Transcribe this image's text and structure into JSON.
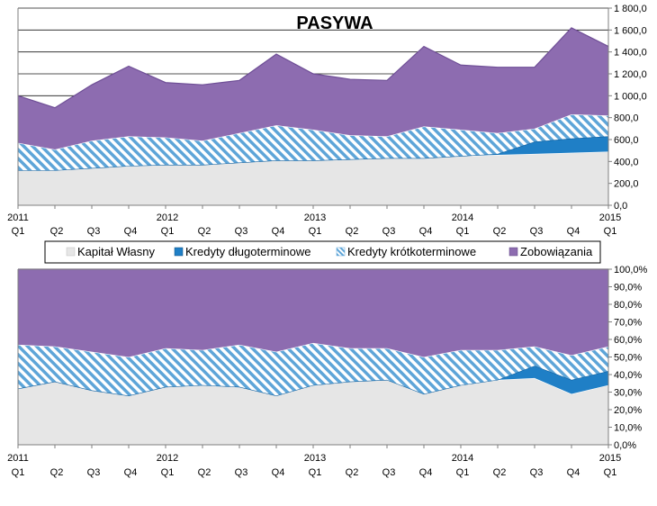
{
  "colors": {
    "kapital": "#e6e6e6",
    "kredyty_dlugo": "#1f7fc6",
    "kredyty_krotko": "#5ea5d8",
    "zobowiazania": "#8d6cb0",
    "axis": "#7f7f7f",
    "grid": "#000000"
  },
  "legend": {
    "items": [
      {
        "label": "Kapitał Własny",
        "icon": "light-gray-square-icon"
      },
      {
        "label": "Kredyty długoterminowe",
        "icon": "blue-square-icon"
      },
      {
        "label": "Kredyty krótkoterminowe",
        "icon": "hatched-square-icon"
      },
      {
        "label": "Zobowiązania",
        "icon": "purple-square-icon"
      }
    ]
  },
  "x_labels": {
    "quarters": [
      "Q1",
      "Q2",
      "Q3",
      "Q4",
      "Q1",
      "Q2",
      "Q3",
      "Q4",
      "Q1",
      "Q2",
      "Q3",
      "Q4",
      "Q1",
      "Q2",
      "Q3",
      "Q4",
      "Q1"
    ],
    "years": [
      {
        "index": 0,
        "label": "2011"
      },
      {
        "index": 4,
        "label": "2012"
      },
      {
        "index": 8,
        "label": "2013"
      },
      {
        "index": 12,
        "label": "2014"
      },
      {
        "index": 16,
        "label": "2015"
      }
    ]
  },
  "chart_data": [
    {
      "type": "area",
      "stacked": true,
      "title": "PASYWA",
      "x": [
        "2011 Q1",
        "2011 Q2",
        "2011 Q3",
        "2011 Q4",
        "2012 Q1",
        "2012 Q2",
        "2012 Q3",
        "2012 Q4",
        "2013 Q1",
        "2013 Q2",
        "2013 Q3",
        "2013 Q4",
        "2014 Q1",
        "2014 Q2",
        "2014 Q3",
        "2014 Q4",
        "2015 Q1"
      ],
      "ylim": [
        0,
        1800
      ],
      "yticks": [
        "0,0",
        "200,0",
        "400,0",
        "600,0",
        "800,0",
        "1 000,0",
        "1 200,0",
        "1 400,0",
        "1 600,0",
        "1 800,0"
      ],
      "ytick_values": [
        0,
        200,
        400,
        600,
        800,
        1000,
        1200,
        1400,
        1600,
        1800
      ],
      "y_axis": "right",
      "grid": true,
      "series": [
        {
          "name": "Kapitał Własny",
          "values": [
            320,
            320,
            340,
            360,
            370,
            370,
            390,
            410,
            410,
            420,
            430,
            430,
            450,
            460,
            470,
            480,
            490
          ]
        },
        {
          "name": "Kredyty długoterminowe",
          "values": [
            0,
            0,
            0,
            0,
            0,
            0,
            0,
            0,
            0,
            0,
            0,
            0,
            0,
            10,
            110,
            130,
            140
          ]
        },
        {
          "name": "Kredyty krótkoterminowe",
          "values": [
            250,
            190,
            250,
            270,
            250,
            220,
            270,
            320,
            280,
            220,
            200,
            290,
            240,
            190,
            120,
            220,
            190
          ]
        },
        {
          "name": "Zobowiązania",
          "values": [
            430,
            380,
            510,
            640,
            500,
            510,
            480,
            650,
            510,
            510,
            510,
            730,
            590,
            600,
            560,
            790,
            630
          ]
        }
      ]
    },
    {
      "type": "area",
      "stacked": true,
      "percent": true,
      "x": [
        "2011 Q1",
        "2011 Q2",
        "2011 Q3",
        "2011 Q4",
        "2012 Q1",
        "2012 Q2",
        "2012 Q3",
        "2012 Q4",
        "2013 Q1",
        "2013 Q2",
        "2013 Q3",
        "2013 Q4",
        "2014 Q1",
        "2014 Q2",
        "2014 Q3",
        "2014 Q4",
        "2015 Q1"
      ],
      "ylim": [
        0,
        100
      ],
      "yticks": [
        "0,0%",
        "10,0%",
        "20,0%",
        "30,0%",
        "40,0%",
        "50,0%",
        "60,0%",
        "70,0%",
        "80,0%",
        "90,0%",
        "100,0%"
      ],
      "ytick_values": [
        0,
        10,
        20,
        30,
        40,
        50,
        60,
        70,
        80,
        90,
        100
      ],
      "y_axis": "right",
      "grid": false,
      "series": [
        {
          "name": "Kapitał Własny",
          "values": [
            32,
            36,
            31,
            28,
            33,
            34,
            33,
            28,
            34,
            36,
            37,
            29,
            34,
            37,
            38,
            29,
            34
          ]
        },
        {
          "name": "Kredyty długoterminowe",
          "values": [
            0,
            0,
            0,
            0,
            0,
            0,
            0,
            0,
            0,
            0,
            0,
            0,
            0,
            0,
            7,
            8,
            8
          ]
        },
        {
          "name": "Kredyty krótkoterminowe",
          "values": [
            25,
            20,
            22,
            22,
            22,
            20,
            24,
            25,
            24,
            19,
            18,
            21,
            20,
            17,
            11,
            14,
            14
          ]
        },
        {
          "name": "Zobowiązania",
          "values": [
            43,
            44,
            47,
            50,
            45,
            46,
            43,
            47,
            42,
            45,
            45,
            50,
            46,
            46,
            44,
            49,
            44
          ]
        }
      ]
    }
  ]
}
